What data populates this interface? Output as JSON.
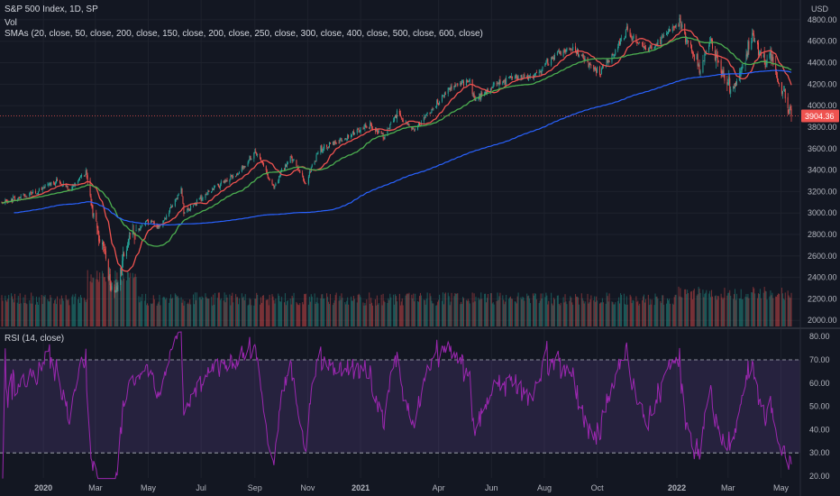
{
  "header": {
    "title": "S&P 500 Index, 1D, SP",
    "vol_label": "Vol",
    "sma_label": "SMAs (20, close, 50, close, 200, close, 150, close, 200, close, 250, close, 300, close, 400, close, 500, close, 600, close)",
    "currency": "USD"
  },
  "rsi": {
    "label": "RSI (14, close)",
    "upper_band": 70,
    "lower_band": 30,
    "ylim": [
      20,
      82
    ],
    "ticks": [
      "80.00",
      "70.00",
      "60.00",
      "50.00",
      "40.00",
      "30.00",
      "20.00"
    ],
    "line_color": "#9c27b0"
  },
  "colors": {
    "background": "#131722",
    "up": "#26a69a",
    "down": "#ef5350",
    "sma20": "#ef5350",
    "sma50": "#4caf50",
    "sma200": "#2962ff",
    "last_price_tag": "#ef5350"
  },
  "chart_data": {
    "type": "line",
    "title": "S&P 500 Index, 1D, SP",
    "x_ticks": [
      "2020",
      "Mar",
      "May",
      "Jul",
      "Sep",
      "Nov",
      "2021",
      "Apr",
      "Jun",
      "Aug",
      "Oct",
      "2022",
      "Mar",
      "May"
    ],
    "x_tick_dates": [
      "2020-01-01",
      "2020-03-01",
      "2020-05-01",
      "2020-07-01",
      "2020-09-01",
      "2020-11-01",
      "2021-01-01",
      "2021-04-01",
      "2021-06-01",
      "2021-08-01",
      "2021-10-01",
      "2022-01-01",
      "2022-03-01",
      "2022-05-01"
    ],
    "y_ticks": [
      "4800.00",
      "4600.00",
      "4400.00",
      "4200.00",
      "4000.00",
      "3800.00",
      "3600.00",
      "3400.00",
      "3200.00",
      "3000.00",
      "2800.00",
      "2600.00",
      "2400.00",
      "2200.00",
      "2000.00"
    ],
    "ylim": [
      1960,
      4900
    ],
    "date_range": [
      "2019-11-14",
      "2022-05-13"
    ],
    "last_price": "3904.36",
    "series": [
      {
        "name": "S&P 500",
        "key_points": [
          [
            "2019-11-14",
            3096
          ],
          [
            "2019-12-15",
            3170
          ],
          [
            "2020-01-15",
            3285
          ],
          [
            "2020-01-31",
            3225
          ],
          [
            "2020-02-19",
            3386
          ],
          [
            "2020-02-28",
            2954
          ],
          [
            "2020-03-09",
            2746
          ],
          [
            "2020-03-16",
            2386
          ],
          [
            "2020-03-23",
            2237
          ],
          [
            "2020-04-08",
            2750
          ],
          [
            "2020-04-29",
            2939
          ],
          [
            "2020-05-14",
            2852
          ],
          [
            "2020-06-08",
            3232
          ],
          [
            "2020-06-11",
            3002
          ],
          [
            "2020-07-15",
            3226
          ],
          [
            "2020-08-14",
            3372
          ],
          [
            "2020-09-02",
            3580
          ],
          [
            "2020-09-23",
            3237
          ],
          [
            "2020-10-12",
            3534
          ],
          [
            "2020-10-30",
            3270
          ],
          [
            "2020-11-13",
            3585
          ],
          [
            "2020-12-15",
            3694
          ],
          [
            "2021-01-08",
            3824
          ],
          [
            "2021-01-29",
            3714
          ],
          [
            "2021-02-12",
            3934
          ],
          [
            "2021-03-04",
            3768
          ],
          [
            "2021-04-16",
            4185
          ],
          [
            "2021-05-07",
            4232
          ],
          [
            "2021-05-12",
            4063
          ],
          [
            "2021-06-25",
            4280
          ],
          [
            "2021-07-19",
            4258
          ],
          [
            "2021-08-13",
            4468
          ],
          [
            "2021-09-02",
            4537
          ],
          [
            "2021-10-04",
            4300
          ],
          [
            "2021-11-04",
            4680
          ],
          [
            "2021-12-01",
            4513
          ],
          [
            "2022-01-03",
            4796
          ],
          [
            "2022-01-27",
            4326
          ],
          [
            "2022-02-09",
            4587
          ],
          [
            "2022-02-24",
            4225
          ],
          [
            "2022-03-08",
            4170
          ],
          [
            "2022-03-29",
            4631
          ],
          [
            "2022-04-12",
            4397
          ],
          [
            "2022-04-20",
            4459
          ],
          [
            "2022-05-02",
            4155
          ],
          [
            "2022-05-09",
            3991
          ],
          [
            "2022-05-12",
            3930
          ],
          [
            "2022-05-13",
            3904
          ]
        ]
      },
      {
        "name": "SMA 20"
      },
      {
        "name": "SMA 50"
      },
      {
        "name": "SMA 200"
      },
      {
        "name": "Vol"
      }
    ]
  }
}
